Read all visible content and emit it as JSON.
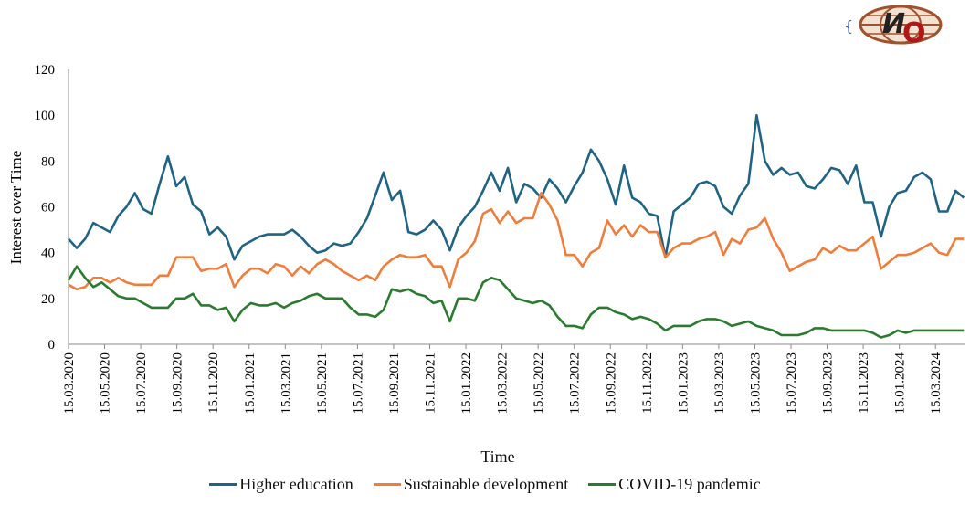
{
  "logo": {
    "text": "ИО",
    "color": "#a0522d"
  },
  "chart_data": {
    "type": "line",
    "xlabel": "Time",
    "ylabel": "Interest over Time",
    "ylim": [
      0,
      120
    ],
    "yticks": [
      0,
      20,
      40,
      60,
      80,
      100,
      120
    ],
    "x_start": "15.03.2020",
    "x_step_days": 14,
    "xtick_labels": [
      "15.03.2020",
      "15.05.2020",
      "15.07.2020",
      "15.09.2020",
      "15.11.2020",
      "15.01.2021",
      "15.03.2021",
      "15.05.2021",
      "15.07.2021",
      "15.09.2021",
      "15.11.2021",
      "15.01.2022",
      "15.03.2022",
      "15.05.2022",
      "15.07.2022",
      "15.09.2022",
      "15.11.2022",
      "15.01.2023",
      "15.03.2023",
      "15.05.2023",
      "15.07.2023",
      "15.09.2023",
      "15.11.2023",
      "15.01.2024",
      "15.03.2024"
    ],
    "grid": false,
    "legend_position": "bottom",
    "series": [
      {
        "name": "Higher education",
        "color": "#1f6385",
        "values": [
          46,
          42,
          46,
          53,
          51,
          49,
          56,
          60,
          66,
          59,
          57,
          70,
          82,
          69,
          73,
          61,
          58,
          48,
          51,
          47,
          37,
          43,
          45,
          47,
          48,
          48,
          48,
          50,
          47,
          43,
          40,
          41,
          44,
          43,
          44,
          49,
          55,
          65,
          75,
          63,
          67,
          49,
          48,
          50,
          54,
          50,
          41,
          51,
          56,
          60,
          67,
          75,
          67,
          77,
          62,
          70,
          68,
          64,
          72,
          68,
          62,
          69,
          75,
          85,
          80,
          72,
          61,
          78,
          64,
          62,
          57,
          56,
          38,
          58,
          61,
          64,
          70,
          71,
          69,
          60,
          57,
          65,
          70,
          100,
          80,
          74,
          77,
          74,
          75,
          69,
          68,
          72,
          77,
          76,
          70,
          78,
          62,
          62,
          47,
          60,
          66,
          67,
          73,
          75,
          72,
          58,
          58,
          67,
          64
        ]
      },
      {
        "name": "Sustainable development",
        "color": "#ef7d3b",
        "values": [
          26,
          24,
          25,
          29,
          29,
          27,
          29,
          27,
          26,
          26,
          26,
          30,
          30,
          38,
          38,
          38,
          32,
          33,
          33,
          35,
          25,
          30,
          33,
          33,
          31,
          35,
          34,
          30,
          34,
          31,
          35,
          37,
          35,
          32,
          30,
          28,
          30,
          28,
          34,
          37,
          39,
          38,
          38,
          39,
          34,
          34,
          25,
          37,
          40,
          45,
          57,
          59,
          53,
          58,
          53,
          55,
          55,
          66,
          61,
          54,
          39,
          39,
          34,
          40,
          42,
          54,
          48,
          52,
          47,
          52,
          49,
          49,
          38,
          42,
          44,
          44,
          46,
          47,
          49,
          39,
          46,
          44,
          50,
          51,
          55,
          46,
          40,
          32,
          34,
          36,
          37,
          42,
          40,
          43,
          41,
          41,
          44,
          47,
          33,
          36,
          39,
          39,
          40,
          42,
          44,
          40,
          39,
          46,
          46
        ]
      },
      {
        "name": "COVID-19 pandemic",
        "color": "#2a7b2f",
        "values": [
          28,
          34,
          29,
          25,
          27,
          24,
          21,
          20,
          20,
          18,
          16,
          16,
          16,
          20,
          20,
          22,
          17,
          17,
          15,
          16,
          10,
          15,
          18,
          17,
          17,
          18,
          16,
          18,
          19,
          21,
          22,
          20,
          20,
          20,
          16,
          13,
          13,
          12,
          15,
          24,
          23,
          24,
          22,
          21,
          18,
          19,
          10,
          20,
          20,
          19,
          27,
          29,
          28,
          24,
          20,
          19,
          18,
          19,
          17,
          12,
          8,
          8,
          7,
          13,
          16,
          16,
          14,
          13,
          11,
          12,
          11,
          9,
          6,
          8,
          8,
          8,
          10,
          11,
          11,
          10,
          8,
          9,
          10,
          8,
          7,
          6,
          4,
          4,
          4,
          5,
          7,
          7,
          6,
          6,
          6,
          6,
          6,
          5,
          3,
          4,
          6,
          5,
          6,
          6,
          6,
          6,
          6,
          6,
          6
        ]
      }
    ]
  }
}
